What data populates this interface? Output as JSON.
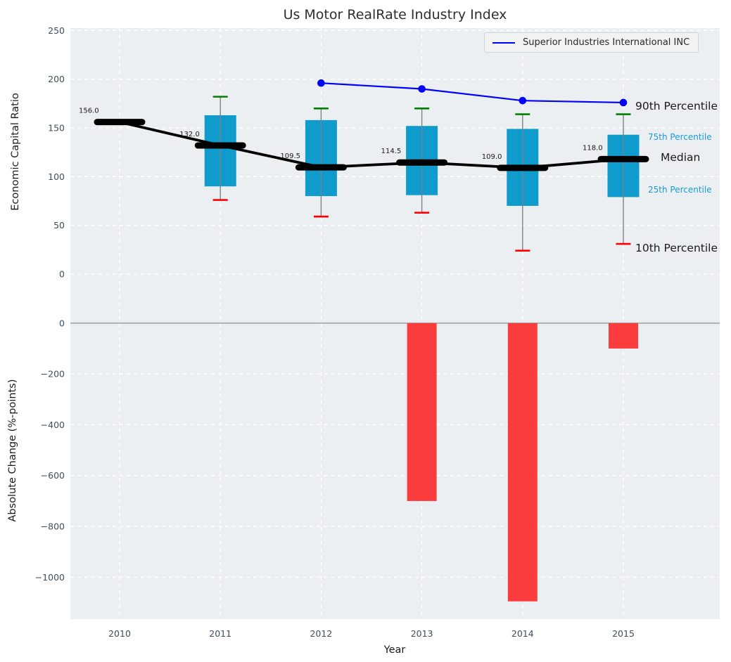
{
  "title": "Us Motor RealRate Industry Index",
  "colors": {
    "plot_bg": "#eceff1",
    "grid": "#ffffff",
    "percentile_box": "#0f9bcc",
    "percentile_text": "#189bd6",
    "company_line": "#0000ff",
    "median_line": "#000000",
    "p90_cap": "#008000",
    "p10_cap": "#ff0000",
    "whisker": "#7a8288",
    "bar": "#fa3c3c",
    "zero_line": "#a9aeb1",
    "tick_text": "#3f4d5c",
    "title_text": "#2e2e2e"
  },
  "chart_data": [
    {
      "type": "boxplot",
      "title": "Us Motor RealRate Industry Index",
      "ylabel": "Economic Capital Ratio",
      "ylim": [
        -25,
        252
      ],
      "yticks": [
        250,
        200,
        150,
        100,
        50,
        0
      ],
      "categories": [
        "2010",
        "2011",
        "2012",
        "2013",
        "2014",
        "2015"
      ],
      "grid": true,
      "legend": {
        "position": "upper right",
        "entries": [
          "Superior Industries International INC"
        ]
      },
      "series": [
        {
          "name": "Median",
          "role": "median",
          "values": [
            156.0,
            132.0,
            109.5,
            114.5,
            109.0,
            118.0
          ],
          "point_labels": [
            "156.0",
            "132.0",
            "109.5",
            "114.5",
            "109.0",
            "118.0"
          ]
        },
        {
          "name": "90th Percentile",
          "role": "p90",
          "values": [
            null,
            182,
            170,
            170,
            164,
            164
          ]
        },
        {
          "name": "75th Percentile",
          "role": "p75",
          "values": [
            null,
            163,
            158,
            152,
            149,
            143
          ]
        },
        {
          "name": "25th Percentile",
          "role": "p25",
          "values": [
            null,
            90,
            80,
            81,
            70,
            79
          ]
        },
        {
          "name": "10th Percentile",
          "role": "p10",
          "values": [
            null,
            76,
            59,
            63,
            24,
            31
          ]
        },
        {
          "name": "Superior Industries International INC",
          "role": "company",
          "values": [
            null,
            null,
            196,
            190,
            178,
            176
          ]
        }
      ],
      "annotations": {
        "p90": "90th Percentile",
        "p75": "75th Percentile",
        "median": "Median",
        "p25": "25th Percentile",
        "p10": "10th Percentile"
      }
    },
    {
      "type": "bar",
      "ylabel": "Absolute Change (%-points)",
      "xlabel": "Year",
      "ylim": [
        97,
        -1160
      ],
      "yticks": [
        0,
        -200,
        -400,
        -600,
        -800,
        -1000
      ],
      "categories": [
        "2010",
        "2011",
        "2012",
        "2013",
        "2014",
        "2015"
      ],
      "values": [
        0,
        0,
        0,
        -700,
        -1095,
        -100
      ],
      "grid": true
    }
  ]
}
